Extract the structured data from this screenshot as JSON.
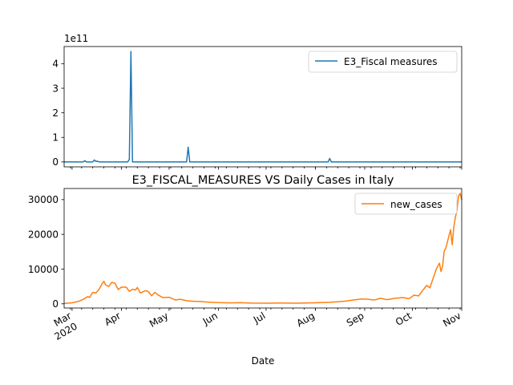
{
  "chart_data": [
    {
      "type": "line",
      "title": "",
      "xlabel": "",
      "ylabel": "",
      "y_offset_label": "1e11",
      "ylim": [
        -0.2,
        4.7
      ],
      "y_ticks": [
        0,
        1,
        2,
        3,
        4
      ],
      "color": "#1f77b4",
      "legend_position": "top-right",
      "series": [
        {
          "name": "E3_Fiscal measures",
          "points": [
            [
              "2020-02-25",
              0
            ],
            [
              "2020-03-08",
              0
            ],
            [
              "2020-03-09",
              0.05
            ],
            [
              "2020-03-10",
              0
            ],
            [
              "2020-03-14",
              0
            ],
            [
              "2020-03-15",
              0.08
            ],
            [
              "2020-03-16",
              0.02
            ],
            [
              "2020-03-17",
              0.03
            ],
            [
              "2020-03-18",
              0
            ],
            [
              "2020-04-05",
              0
            ],
            [
              "2020-04-06",
              0.1
            ],
            [
              "2020-04-07",
              4.5
            ],
            [
              "2020-04-08",
              0
            ],
            [
              "2020-05-12",
              0
            ],
            [
              "2020-05-13",
              0.6
            ],
            [
              "2020-05-14",
              0
            ],
            [
              "2020-08-09",
              0
            ],
            [
              "2020-08-10",
              0.14
            ],
            [
              "2020-08-11",
              0
            ],
            [
              "2020-11-01",
              0
            ]
          ]
        }
      ]
    },
    {
      "type": "line",
      "title": "E3_FISCAL_MEASURES VS Daily Cases in Italy",
      "xlabel": "Date",
      "ylabel": "",
      "ylim": [
        -1200,
        33200
      ],
      "y_ticks": [
        0,
        10000,
        20000,
        30000
      ],
      "color": "#ff7f0e",
      "legend_position": "top-right",
      "x_range": [
        "2020-02-25",
        "2020-11-01"
      ],
      "x_tick_labels": [
        {
          "date": "2020-03-01",
          "label": "Mar",
          "sublabel": "2020"
        },
        {
          "date": "2020-04-01",
          "label": "Apr"
        },
        {
          "date": "2020-05-01",
          "label": "May"
        },
        {
          "date": "2020-06-01",
          "label": "Jun"
        },
        {
          "date": "2020-07-01",
          "label": "Jul"
        },
        {
          "date": "2020-08-01",
          "label": "Aug"
        },
        {
          "date": "2020-09-01",
          "label": "Sep"
        },
        {
          "date": "2020-10-01",
          "label": "Oct"
        },
        {
          "date": "2020-11-01",
          "label": "Nov"
        }
      ],
      "series": [
        {
          "name": "new_cases",
          "points": [
            [
              "2020-02-25",
              100
            ],
            [
              "2020-03-01",
              300
            ],
            [
              "2020-03-05",
              700
            ],
            [
              "2020-03-08",
              1300
            ],
            [
              "2020-03-11",
              2100
            ],
            [
              "2020-03-12",
              1800
            ],
            [
              "2020-03-14",
              3300
            ],
            [
              "2020-03-16",
              3100
            ],
            [
              "2020-03-18",
              4200
            ],
            [
              "2020-03-20",
              5900
            ],
            [
              "2020-03-21",
              6500
            ],
            [
              "2020-03-22",
              5500
            ],
            [
              "2020-03-24",
              5000
            ],
            [
              "2020-03-26",
              6200
            ],
            [
              "2020-03-28",
              5900
            ],
            [
              "2020-03-30",
              4100
            ],
            [
              "2020-04-01",
              4800
            ],
            [
              "2020-04-04",
              4800
            ],
            [
              "2020-04-06",
              3600
            ],
            [
              "2020-04-08",
              4200
            ],
            [
              "2020-04-10",
              4000
            ],
            [
              "2020-04-11",
              4700
            ],
            [
              "2020-04-13",
              3100
            ],
            [
              "2020-04-16",
              3800
            ],
            [
              "2020-04-18",
              3500
            ],
            [
              "2020-04-20",
              2300
            ],
            [
              "2020-04-22",
              3300
            ],
            [
              "2020-04-24",
              2600
            ],
            [
              "2020-04-27",
              1800
            ],
            [
              "2020-05-01",
              1900
            ],
            [
              "2020-05-05",
              1100
            ],
            [
              "2020-05-08",
              1300
            ],
            [
              "2020-05-12",
              900
            ],
            [
              "2020-05-17",
              700
            ],
            [
              "2020-05-20",
              700
            ],
            [
              "2020-05-25",
              500
            ],
            [
              "2020-06-01",
              350
            ],
            [
              "2020-06-08",
              280
            ],
            [
              "2020-06-15",
              330
            ],
            [
              "2020-06-22",
              220
            ],
            [
              "2020-07-01",
              190
            ],
            [
              "2020-07-10",
              230
            ],
            [
              "2020-07-20",
              200
            ],
            [
              "2020-08-01",
              300
            ],
            [
              "2020-08-10",
              450
            ],
            [
              "2020-08-15",
              600
            ],
            [
              "2020-08-20",
              800
            ],
            [
              "2020-08-25",
              1100
            ],
            [
              "2020-08-30",
              1400
            ],
            [
              "2020-09-03",
              1300
            ],
            [
              "2020-09-07",
              1100
            ],
            [
              "2020-09-11",
              1600
            ],
            [
              "2020-09-15",
              1200
            ],
            [
              "2020-09-20",
              1600
            ],
            [
              "2020-09-25",
              1800
            ],
            [
              "2020-09-29",
              1500
            ],
            [
              "2020-10-02",
              2500
            ],
            [
              "2020-10-05",
              2300
            ],
            [
              "2020-10-07",
              3600
            ],
            [
              "2020-10-10",
              5300
            ],
            [
              "2020-10-12",
              4600
            ],
            [
              "2020-10-14",
              7300
            ],
            [
              "2020-10-16",
              10000
            ],
            [
              "2020-10-18",
              11700
            ],
            [
              "2020-10-19",
              9300
            ],
            [
              "2020-10-20",
              10900
            ],
            [
              "2020-10-21",
              15200
            ],
            [
              "2020-10-22",
              16000
            ],
            [
              "2020-10-24",
              19600
            ],
            [
              "2020-10-25",
              21300
            ],
            [
              "2020-10-26",
              17000
            ],
            [
              "2020-10-27",
              21900
            ],
            [
              "2020-10-28",
              24900
            ],
            [
              "2020-10-29",
              26800
            ],
            [
              "2020-10-30",
              31000
            ],
            [
              "2020-10-31",
              31800
            ],
            [
              "2020-11-01",
              29900
            ]
          ]
        }
      ]
    }
  ]
}
